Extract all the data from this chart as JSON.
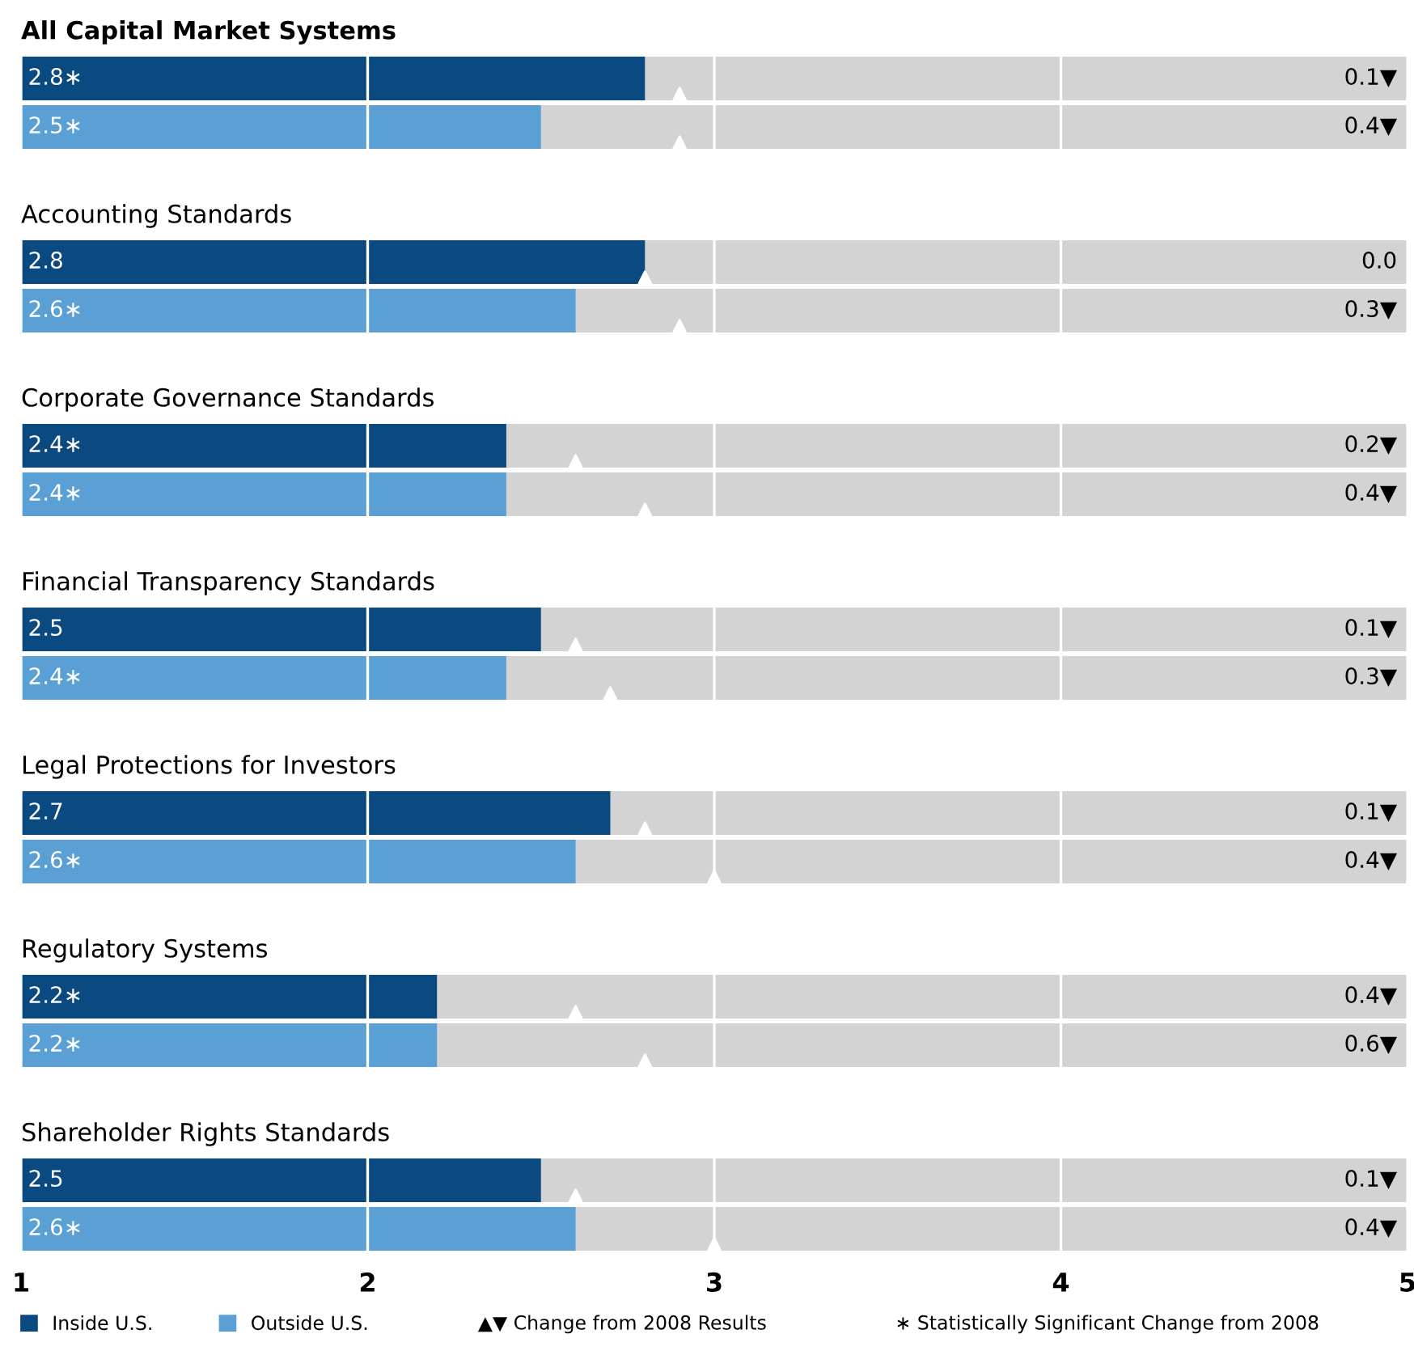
{
  "chart_data": {
    "type": "bar",
    "orientation": "horizontal",
    "categories": [
      "All Capital Market Systems",
      "Accounting Standards",
      "Corporate Governance Standards",
      "Financial Transparency Standards",
      "Legal Protections for Investors",
      "Regulatory Systems",
      "Shareholder Rights Standards"
    ],
    "xlim": [
      1,
      5
    ],
    "xticks": [
      1,
      2,
      3,
      4,
      5
    ],
    "grid": "x",
    "legend": "bottom",
    "series": [
      {
        "name": "Inside U.S.",
        "color": "#0b4a80",
        "values": [
          2.8,
          2.8,
          2.4,
          2.5,
          2.7,
          2.2,
          2.5
        ],
        "value_labels": [
          "2.8∗",
          "2.8",
          "2.4∗",
          "2.5",
          "2.7",
          "2.2∗",
          "2.5"
        ]
      },
      {
        "name": "Outside U.S.",
        "color": "#5aa0d5",
        "values": [
          2.5,
          2.6,
          2.4,
          2.4,
          2.6,
          2.2,
          2.6
        ],
        "value_labels": [
          "2.5∗",
          "2.6∗",
          "2.4∗",
          "2.4∗",
          "2.6∗",
          "2.2∗",
          "2.6∗"
        ]
      },
      {
        "type": "scatter",
        "marker": "triangle",
        "color": "#ffffff",
        "values": [
          2.9,
          2.8,
          2.6,
          2.6,
          2.8,
          2.6,
          2.6
        ]
      },
      {
        "type": "scatter",
        "marker": "triangle",
        "color": "#ffffff",
        "values": [
          2.9,
          2.9,
          2.8,
          2.7,
          3.0,
          2.8,
          3.0
        ]
      }
    ],
    "annotations": [
      "0.1▼",
      "0.4▼",
      "0.0",
      "0.3▼",
      "0.2▼",
      "0.4▼",
      "0.1▼",
      "0.3▼",
      "0.1▼",
      "0.4▼",
      "0.4▼",
      "0.6▼",
      "0.1▼",
      "0.4▼",
      "▲▼ Change from 2008 Results",
      "∗ Statistically Significant Change from 2008"
    ]
  }
}
